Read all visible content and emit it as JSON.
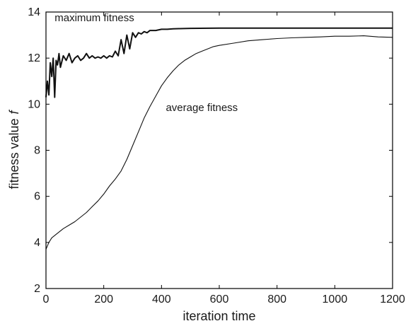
{
  "chart_data": {
    "type": "line",
    "xlabel": "iteration time",
    "ylabel_main": "fitness value",
    "ylabel_var": "f",
    "xlim": [
      0,
      1200
    ],
    "ylim": [
      2,
      14
    ],
    "xticks": [
      0,
      200,
      400,
      600,
      800,
      1000,
      1200
    ],
    "yticks": [
      2,
      4,
      6,
      8,
      10,
      12,
      14
    ],
    "grid": false,
    "annotations": [
      {
        "text": "maximum fitness",
        "x": 30,
        "y": 13.6
      },
      {
        "text": "average fitness",
        "x": 415,
        "y": 9.7
      }
    ],
    "series": [
      {
        "id": "maximum",
        "x": [
          0,
          5,
          10,
          15,
          20,
          25,
          30,
          35,
          40,
          45,
          50,
          60,
          70,
          80,
          90,
          100,
          110,
          120,
          130,
          140,
          150,
          160,
          170,
          180,
          190,
          200,
          210,
          220,
          230,
          240,
          250,
          260,
          270,
          280,
          290,
          300,
          310,
          320,
          330,
          340,
          350,
          360,
          380,
          400,
          420,
          440,
          460,
          500,
          600,
          800,
          1000,
          1200
        ],
        "y": [
          10.3,
          11.0,
          10.4,
          11.8,
          11.2,
          12.0,
          10.3,
          11.9,
          11.7,
          12.2,
          11.6,
          12.1,
          11.9,
          12.2,
          11.8,
          12.0,
          12.1,
          11.9,
          12.0,
          12.2,
          12.0,
          12.1,
          12.0,
          12.05,
          12.0,
          12.1,
          12.0,
          12.1,
          12.05,
          12.3,
          12.1,
          12.8,
          12.2,
          13.0,
          12.4,
          13.1,
          12.9,
          13.1,
          13.05,
          13.15,
          13.1,
          13.2,
          13.2,
          13.25,
          13.25,
          13.27,
          13.28,
          13.29,
          13.3,
          13.3,
          13.3,
          13.3
        ]
      },
      {
        "id": "average",
        "x": [
          0,
          10,
          20,
          40,
          60,
          80,
          100,
          120,
          140,
          160,
          180,
          200,
          220,
          240,
          260,
          280,
          300,
          320,
          340,
          360,
          380,
          400,
          420,
          440,
          460,
          480,
          500,
          520,
          540,
          560,
          580,
          600,
          650,
          700,
          750,
          800,
          850,
          900,
          950,
          1000,
          1050,
          1100,
          1150,
          1200
        ],
        "y": [
          3.7,
          4.0,
          4.2,
          4.4,
          4.6,
          4.75,
          4.9,
          5.1,
          5.3,
          5.55,
          5.8,
          6.1,
          6.45,
          6.75,
          7.1,
          7.6,
          8.2,
          8.8,
          9.4,
          9.9,
          10.35,
          10.8,
          11.15,
          11.45,
          11.7,
          11.9,
          12.05,
          12.2,
          12.3,
          12.4,
          12.5,
          12.55,
          12.65,
          12.75,
          12.8,
          12.85,
          12.88,
          12.9,
          12.92,
          12.95,
          12.95,
          12.97,
          12.92,
          12.9
        ]
      }
    ]
  }
}
